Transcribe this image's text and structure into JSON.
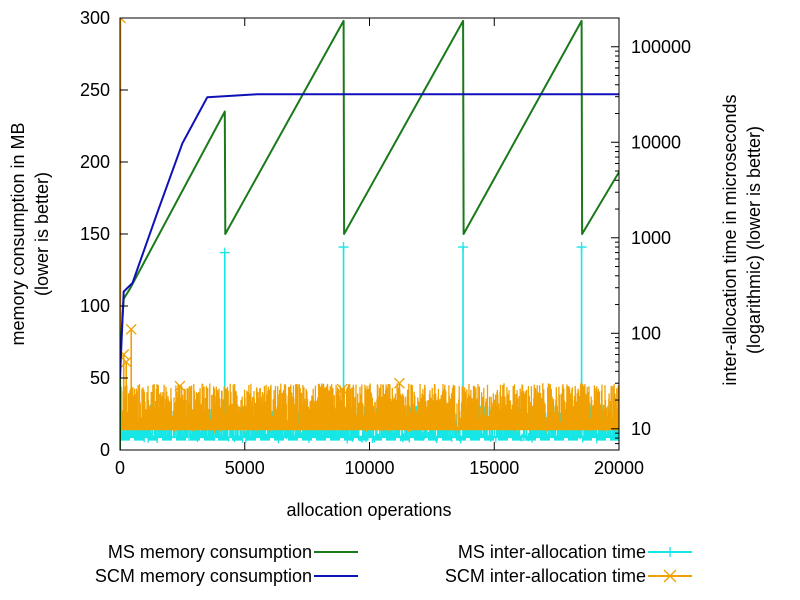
{
  "chart_data": {
    "type": "line",
    "title": "",
    "xlabel": "allocation operations",
    "ylabel_left": [
      "memory consumption in MB",
      "(lower is better)"
    ],
    "ylabel_right": [
      "inter-allocation time in microseconds",
      "(logarithmic) (lower is better)"
    ],
    "xlim": [
      0,
      20000
    ],
    "ylim_left": [
      0,
      300
    ],
    "ylim_right_log": [
      6,
      200000
    ],
    "xticks": [
      0,
      5000,
      10000,
      15000,
      20000
    ],
    "xtick_labels": [
      "0",
      "5000",
      "10000",
      "15000",
      "20000"
    ],
    "yticks_left": [
      0,
      50,
      100,
      150,
      200,
      250,
      300
    ],
    "ytick_labels_left": [
      "0",
      "50",
      "100",
      "150",
      "200",
      "250",
      "300"
    ],
    "yticks_right": [
      10,
      100,
      1000,
      10000,
      100000
    ],
    "ytick_labels_right": [
      "10",
      "100",
      "1000",
      "10000",
      "100000"
    ],
    "grid": false,
    "legend_position": "bottom",
    "series": [
      {
        "name": "MS memory consumption",
        "axis": "left",
        "color": "#1a7a1a",
        "style": "line",
        "points": [
          [
            0,
            0
          ],
          [
            0,
            65
          ],
          [
            150,
            105
          ],
          [
            400,
            112
          ],
          [
            4200,
            235
          ],
          [
            4220,
            150
          ],
          [
            8960,
            298
          ],
          [
            8980,
            150
          ],
          [
            13750,
            298
          ],
          [
            13770,
            150
          ],
          [
            18500,
            298
          ],
          [
            18520,
            150
          ],
          [
            20000,
            193
          ]
        ]
      },
      {
        "name": "SCM memory consumption",
        "axis": "left",
        "color": "#1010b8",
        "style": "line",
        "points": [
          [
            0,
            50
          ],
          [
            50,
            70
          ],
          [
            150,
            110
          ],
          [
            500,
            116
          ],
          [
            1500,
            165
          ],
          [
            2500,
            213
          ],
          [
            3500,
            245
          ],
          [
            4500,
            246
          ],
          [
            5500,
            247
          ],
          [
            20000,
            247
          ]
        ]
      },
      {
        "name": "MS inter-allocation time",
        "axis": "right",
        "color": "#16e6e6",
        "style": "impulses-plus",
        "baseline": 8,
        "spikes": [
          [
            4200,
            700
          ],
          [
            8960,
            800
          ],
          [
            13750,
            800
          ],
          [
            18500,
            800
          ]
        ],
        "noise_range": [
          7,
          18
        ]
      },
      {
        "name": "SCM inter-allocation time",
        "axis": "right",
        "color": "#f0a000",
        "style": "impulses-cross",
        "baseline": 10,
        "spikes": [
          [
            20,
            200000
          ],
          [
            150,
            60
          ],
          [
            250,
            50
          ],
          [
            450,
            110
          ],
          [
            2400,
            28
          ],
          [
            8900,
            26
          ],
          [
            11200,
            30
          ]
        ],
        "noise_range": [
          9,
          30
        ]
      }
    ]
  }
}
